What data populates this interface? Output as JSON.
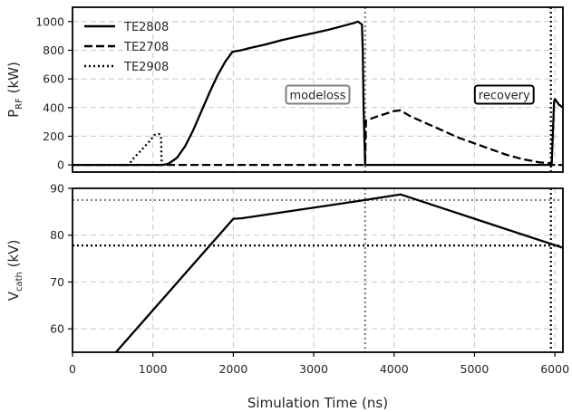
{
  "chart_data": [
    {
      "type": "line",
      "panel": "top",
      "ylabel_main": "P",
      "ylabel_sub": "RF",
      "ylabel_unit": " (kW)",
      "xlim": [
        0,
        6100
      ],
      "ylim": [
        -50,
        1100
      ],
      "yticks": [
        0,
        200,
        400,
        600,
        800,
        1000
      ],
      "grid": true,
      "legend": "top-left",
      "series": [
        {
          "name": "TE2808",
          "style": "solid",
          "color": "#000000",
          "points": [
            [
              0,
              0
            ],
            [
              1100,
              0
            ],
            [
              1150,
              2
            ],
            [
              1200,
              10
            ],
            [
              1300,
              50
            ],
            [
              1400,
              130
            ],
            [
              1500,
              240
            ],
            [
              1600,
              370
            ],
            [
              1700,
              500
            ],
            [
              1800,
              620
            ],
            [
              1900,
              720
            ],
            [
              1990,
              790
            ],
            [
              2050,
              795
            ],
            [
              2100,
              800
            ],
            [
              2200,
              815
            ],
            [
              2400,
              840
            ],
            [
              2600,
              870
            ],
            [
              2800,
              895
            ],
            [
              3000,
              920
            ],
            [
              3200,
              945
            ],
            [
              3400,
              975
            ],
            [
              3500,
              990
            ],
            [
              3550,
              1000
            ],
            [
              3600,
              980
            ],
            [
              3610,
              800
            ],
            [
              3620,
              400
            ],
            [
              3640,
              0
            ],
            [
              5960,
              0
            ],
            [
              5990,
              440
            ],
            [
              6000,
              460
            ],
            [
              6050,
              420
            ],
            [
              6100,
              400
            ]
          ]
        },
        {
          "name": "TE2708",
          "style": "dashed",
          "color": "#000000",
          "points": [
            [
              0,
              0
            ],
            [
              3640,
              0
            ],
            [
              3650,
              310
            ],
            [
              3800,
              340
            ],
            [
              4000,
              375
            ],
            [
              4080,
              380
            ],
            [
              4200,
              340
            ],
            [
              4400,
              290
            ],
            [
              4600,
              240
            ],
            [
              4800,
              190
            ],
            [
              5000,
              150
            ],
            [
              5200,
              110
            ],
            [
              5400,
              70
            ],
            [
              5600,
              40
            ],
            [
              5800,
              18
            ],
            [
              5950,
              10
            ],
            [
              5960,
              0
            ],
            [
              6100,
              0
            ]
          ]
        },
        {
          "name": "TE2908",
          "style": "dotted",
          "color": "#000000",
          "points": [
            [
              0,
              0
            ],
            [
              700,
              0
            ],
            [
              750,
              40
            ],
            [
              850,
              100
            ],
            [
              950,
              160
            ],
            [
              1020,
              210
            ],
            [
              1080,
              215
            ],
            [
              1100,
              200
            ],
            [
              1110,
              0
            ],
            [
              1150,
              0
            ]
          ]
        }
      ],
      "vlines": [
        {
          "x": 3640,
          "style": "dotted",
          "color": "#808080"
        },
        {
          "x": 5950,
          "style": "dotted",
          "color": "#000000"
        }
      ],
      "annotations": [
        {
          "text": "modeloss",
          "x": 3050,
          "y": 490,
          "border": "#808080"
        },
        {
          "text": "recovery",
          "x": 5370,
          "y": 490,
          "border": "#000000"
        }
      ]
    },
    {
      "type": "line",
      "panel": "bottom",
      "ylabel_main": "V",
      "ylabel_sub": "cath",
      "ylabel_unit": " (kV)",
      "xlabel": "Simulation Time (ns)",
      "xlim": [
        0,
        6100
      ],
      "ylim": [
        55,
        90
      ],
      "xticks": [
        0,
        1000,
        2000,
        3000,
        4000,
        5000,
        6000
      ],
      "yticks": [
        60,
        70,
        80,
        90
      ],
      "grid": true,
      "series": [
        {
          "name": "TE2808",
          "style": "solid",
          "color": "#000000",
          "points": [
            [
              540,
              55
            ],
            [
              2000,
              83.5
            ],
            [
              2100,
              83.6
            ],
            [
              3640,
              87.5
            ],
            [
              4080,
              88.7
            ],
            [
              6100,
              77.3
            ]
          ]
        }
      ],
      "hlines": [
        {
          "y": 87.5,
          "style": "dotted",
          "color": "#808080"
        },
        {
          "y": 77.8,
          "style": "dotted",
          "color": "#000000"
        }
      ],
      "vlines": [
        {
          "x": 3640,
          "style": "dotted",
          "color": "#808080"
        },
        {
          "x": 5950,
          "style": "dotted",
          "color": "#000000"
        }
      ]
    }
  ]
}
